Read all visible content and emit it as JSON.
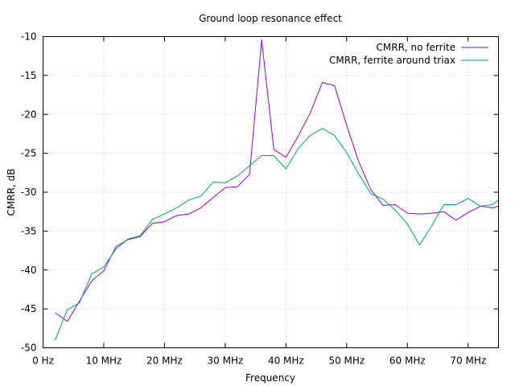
{
  "chart_data": {
    "type": "line",
    "title": "Ground loop resonance effect",
    "xlabel": "Frequency",
    "ylabel": "CMRR, dB",
    "xlim": [
      0,
      75
    ],
    "ylim": [
      -50,
      -10
    ],
    "grid": true,
    "legend": "top-right",
    "x_ticks": [
      {
        "value": 0,
        "label": "0  Hz"
      },
      {
        "value": 10,
        "label": "10 MHz"
      },
      {
        "value": 20,
        "label": "20 MHz"
      },
      {
        "value": 30,
        "label": "30 MHz"
      },
      {
        "value": 40,
        "label": "40 MHz"
      },
      {
        "value": 50,
        "label": "50 MHz"
      },
      {
        "value": 60,
        "label": "60 MHz"
      },
      {
        "value": 70,
        "label": "70 MHz"
      }
    ],
    "y_ticks": [
      {
        "value": -10,
        "label": "-10"
      },
      {
        "value": -15,
        "label": "-15"
      },
      {
        "value": -20,
        "label": "-20"
      },
      {
        "value": -25,
        "label": "-25"
      },
      {
        "value": -30,
        "label": "-30"
      },
      {
        "value": -35,
        "label": "-35"
      },
      {
        "value": -40,
        "label": "-40"
      },
      {
        "value": -45,
        "label": "-45"
      },
      {
        "value": -50,
        "label": "-50"
      }
    ],
    "series": [
      {
        "name": "CMRR, no ferrite",
        "color": "#9400d3",
        "x": [
          2,
          4,
          6,
          8,
          10,
          12,
          14,
          16,
          18,
          20,
          22,
          24,
          26,
          28,
          30,
          32,
          34,
          36,
          38,
          40,
          42,
          44,
          46,
          48,
          50,
          52,
          54,
          56,
          58,
          60,
          62,
          64,
          66,
          68,
          70,
          72,
          74,
          75
        ],
        "y": [
          -45.5,
          -46.6,
          -44.0,
          -41.4,
          -40.1,
          -37.0,
          -36.1,
          -35.7,
          -34.0,
          -33.8,
          -33.0,
          -32.8,
          -32.0,
          -30.7,
          -29.4,
          -29.3,
          -27.7,
          -10.4,
          -24.5,
          -25.5,
          -22.8,
          -19.8,
          -15.9,
          -16.3,
          -21.4,
          -26.1,
          -29.7,
          -31.7,
          -31.6,
          -32.7,
          -32.8,
          -32.7,
          -32.5,
          -33.6,
          -32.6,
          -31.8,
          -32.0,
          -31.8
        ]
      },
      {
        "name": "CMRR, ferrite around triax",
        "color": "#009e73",
        "x": [
          2,
          4,
          6,
          8,
          10,
          12,
          14,
          16,
          18,
          20,
          22,
          24,
          26,
          28,
          30,
          32,
          34,
          36,
          38,
          40,
          42,
          44,
          46,
          48,
          50,
          52,
          54,
          56,
          58,
          60,
          62,
          64,
          66,
          68,
          70,
          72,
          74,
          75
        ],
        "y": [
          -49.0,
          -45.1,
          -44.2,
          -40.5,
          -39.6,
          -37.3,
          -36.0,
          -35.6,
          -33.5,
          -32.8,
          -32.0,
          -31.0,
          -30.5,
          -28.7,
          -28.8,
          -27.9,
          -26.6,
          -25.3,
          -25.3,
          -27.0,
          -24.4,
          -22.7,
          -21.8,
          -22.7,
          -24.9,
          -27.7,
          -30.2,
          -30.9,
          -32.3,
          -34.1,
          -36.8,
          -34.3,
          -31.6,
          -31.6,
          -30.8,
          -31.8,
          -31.6,
          -31.0
        ]
      }
    ]
  }
}
